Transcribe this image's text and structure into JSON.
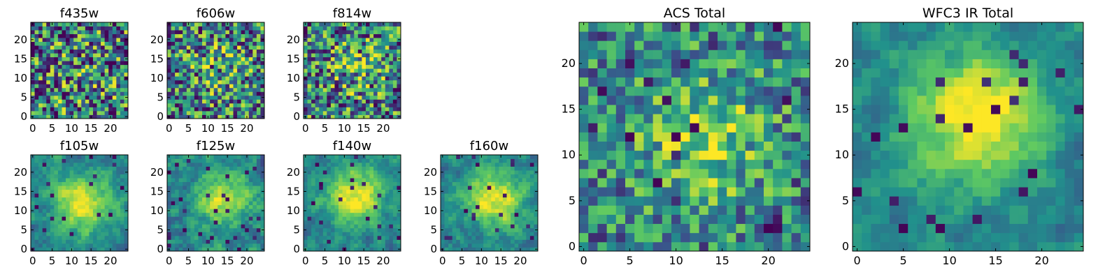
{
  "figure": {
    "description_free": true
  },
  "colormap": {
    "name": "viridis",
    "stops": [
      "#440154",
      "#3b528b",
      "#21918c",
      "#5ec962",
      "#fde725"
    ]
  },
  "chart_data": [
    {
      "type": "heatmap",
      "title": "f435w",
      "xlabel": "",
      "ylabel": "",
      "xlim": [
        0,
        24
      ],
      "ylim": [
        0,
        24
      ],
      "xticks": [
        "0",
        "5",
        "10",
        "15",
        "20"
      ],
      "yticks": [
        "0",
        "5",
        "10",
        "15",
        "20"
      ],
      "grid_size": 25,
      "seed": 11,
      "pattern": "noise",
      "peak": [
        12,
        12
      ],
      "peak_strength": 0.08,
      "noise": 0.95,
      "dark_fraction": 0.06,
      "value_range": [
        0,
        1
      ]
    },
    {
      "type": "heatmap",
      "title": "f606w",
      "xlim": [
        0,
        24
      ],
      "ylim": [
        0,
        24
      ],
      "xticks": [
        "0",
        "5",
        "10",
        "15",
        "20"
      ],
      "yticks": [
        "0",
        "5",
        "10",
        "15",
        "20"
      ],
      "grid_size": 25,
      "seed": 23,
      "pattern": "noise",
      "peak": [
        13,
        13
      ],
      "peak_strength": 0.2,
      "noise": 0.85,
      "dark_fraction": 0.05,
      "value_range": [
        0,
        1
      ]
    },
    {
      "type": "heatmap",
      "title": "f814w",
      "xlim": [
        0,
        24
      ],
      "ylim": [
        0,
        24
      ],
      "xticks": [
        "0",
        "5",
        "10",
        "15",
        "20"
      ],
      "yticks": [
        "0",
        "5",
        "10",
        "15",
        "20"
      ],
      "grid_size": 25,
      "seed": 37,
      "pattern": "noise",
      "peak": [
        13,
        13
      ],
      "peak_strength": 0.25,
      "noise": 0.85,
      "dark_fraction": 0.05,
      "value_range": [
        0,
        1
      ]
    },
    {
      "type": "heatmap",
      "title": "f105w",
      "xlim": [
        0,
        24
      ],
      "ylim": [
        0,
        24
      ],
      "xticks": [
        "0",
        "5",
        "10",
        "15",
        "20"
      ],
      "yticks": [
        "0",
        "5",
        "10",
        "15",
        "20"
      ],
      "grid_size": 25,
      "seed": 41,
      "pattern": "smooth",
      "peak": [
        13,
        12
      ],
      "peak_strength": 0.55,
      "noise": 0.5,
      "dark_fraction": 0.04,
      "value_range": [
        0,
        1
      ]
    },
    {
      "type": "heatmap",
      "title": "f125w",
      "xlim": [
        0,
        24
      ],
      "ylim": [
        0,
        24
      ],
      "xticks": [
        "0",
        "5",
        "10",
        "15",
        "20"
      ],
      "yticks": [
        "0",
        "5",
        "10",
        "15",
        "20"
      ],
      "grid_size": 25,
      "seed": 53,
      "pattern": "smooth",
      "peak": [
        14,
        13
      ],
      "peak_strength": 0.45,
      "noise": 0.6,
      "dark_fraction": 0.04,
      "value_range": [
        0,
        1
      ]
    },
    {
      "type": "heatmap",
      "title": "f140w",
      "xlim": [
        0,
        24
      ],
      "ylim": [
        0,
        24
      ],
      "xticks": [
        "0",
        "5",
        "10",
        "15",
        "20"
      ],
      "yticks": [
        "0",
        "5",
        "10",
        "15",
        "20"
      ],
      "grid_size": 25,
      "seed": 67,
      "pattern": "smooth",
      "peak": [
        13,
        14
      ],
      "peak_strength": 0.55,
      "noise": 0.5,
      "dark_fraction": 0.03,
      "value_range": [
        0,
        1
      ]
    },
    {
      "type": "heatmap",
      "title": "f160w",
      "xlim": [
        0,
        24
      ],
      "ylim": [
        0,
        24
      ],
      "xticks": [
        "0",
        "5",
        "10",
        "15",
        "20"
      ],
      "yticks": [
        "0",
        "5",
        "10",
        "15",
        "20"
      ],
      "grid_size": 25,
      "seed": 79,
      "pattern": "smooth",
      "peak": [
        13,
        13
      ],
      "peak_strength": 0.55,
      "noise": 0.5,
      "dark_fraction": 0.03,
      "value_range": [
        0,
        1
      ]
    },
    {
      "type": "heatmap",
      "title": "ACS Total",
      "xlim": [
        0,
        24
      ],
      "ylim": [
        0,
        24
      ],
      "xticks": [
        "0",
        "5",
        "10",
        "15",
        "20"
      ],
      "yticks": [
        "0",
        "5",
        "10",
        "15",
        "20"
      ],
      "grid_size": 25,
      "seed": 97,
      "pattern": "noise",
      "peak": [
        13,
        12
      ],
      "peak_strength": 0.35,
      "noise": 0.6,
      "dark_fraction": 0.04,
      "value_range": [
        0,
        1
      ]
    },
    {
      "type": "heatmap",
      "title": "WFC3 IR Total",
      "xlim": [
        0,
        24
      ],
      "ylim": [
        0,
        24
      ],
      "xticks": [
        "0",
        "5",
        "10",
        "15",
        "20"
      ],
      "yticks": [
        "0",
        "5",
        "10",
        "15",
        "20"
      ],
      "grid_size": 25,
      "seed": 113,
      "pattern": "smooth",
      "peak": [
        13,
        14
      ],
      "peak_strength": 0.6,
      "noise": 0.45,
      "dark_fraction": 0.05,
      "value_range": [
        0,
        1
      ]
    }
  ]
}
